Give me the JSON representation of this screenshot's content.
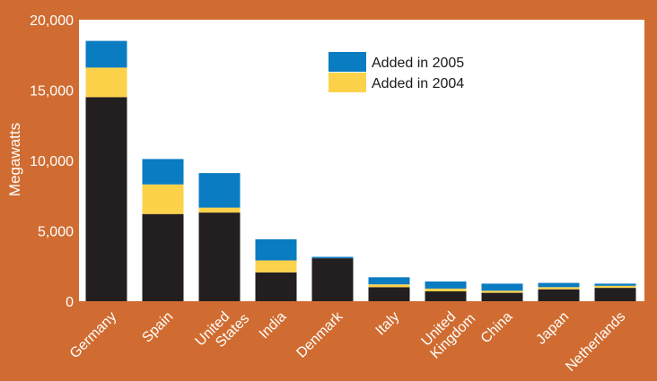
{
  "chart_data": {
    "type": "bar",
    "stacked": true,
    "ylabel": "Megawatts",
    "ylim": [
      0,
      20000
    ],
    "yticks": [
      0,
      5000,
      10000,
      15000,
      20000
    ],
    "ytick_labels": [
      "0",
      "5,000",
      "10,000",
      "15,000",
      "20,000"
    ],
    "categories": [
      [
        "Germany"
      ],
      [
        "Spain"
      ],
      [
        "United",
        "States"
      ],
      [
        "India"
      ],
      [
        "Denmark"
      ],
      [
        "Italy"
      ],
      [
        "United",
        "Kingdom"
      ],
      [
        "China"
      ],
      [
        "Japan"
      ],
      [
        "Netherlands"
      ]
    ],
    "series": [
      {
        "key": "base",
        "color": "#231f20",
        "values": [
          14500,
          6200,
          6300,
          2050,
          3050,
          1000,
          700,
          600,
          850,
          950
        ]
      },
      {
        "name": "Added in 2004",
        "key": "y2004",
        "color": "#fdd24b",
        "values": [
          2100,
          2100,
          350,
          850,
          0,
          200,
          200,
          150,
          150,
          150
        ]
      },
      {
        "name": "Added in 2005",
        "key": "y2005",
        "color": "#0a7cc1",
        "values": [
          1900,
          1800,
          2450,
          1500,
          100,
          500,
          500,
          500,
          300,
          150
        ]
      }
    ],
    "legend": {
      "position": "top-right",
      "entries": [
        {
          "label": "Added in 2005",
          "color": "#0a7cc1"
        },
        {
          "label": "Added in 2004",
          "color": "#fdd24b"
        }
      ]
    }
  },
  "colors": {
    "background": "#d06c31",
    "plot_background": "#ffffff"
  }
}
